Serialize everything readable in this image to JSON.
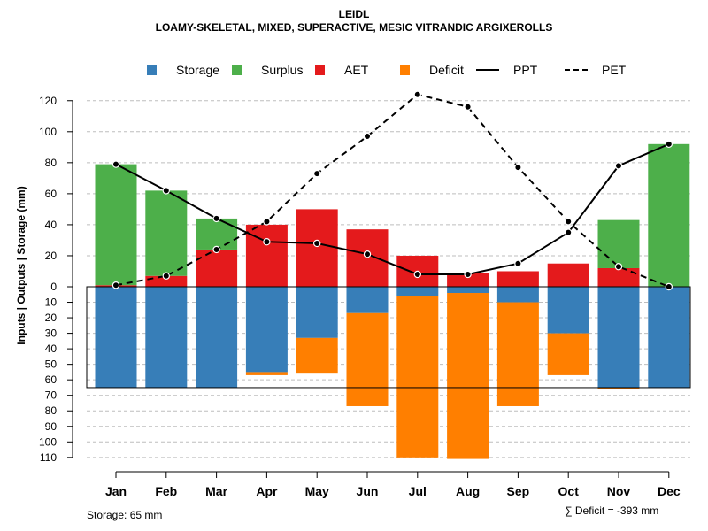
{
  "title": "LEIDL",
  "subtitle": "LOAMY-SKELETAL, MIXED, SUPERACTIVE, MESIC VITRANDIC ARGIXEROLLS",
  "legend": [
    {
      "label": "Storage",
      "kind": "square",
      "color": "#377EB8"
    },
    {
      "label": "Surplus",
      "kind": "square",
      "color": "#4DAF4A"
    },
    {
      "label": "AET",
      "kind": "square",
      "color": "#E41A1C"
    },
    {
      "label": "Deficit",
      "kind": "square",
      "color": "#FF7F00"
    },
    {
      "label": "PPT",
      "kind": "solid-line",
      "color": "#000000"
    },
    {
      "label": "PET",
      "kind": "dashed-line",
      "color": "#000000"
    }
  ],
  "storage_note": "Storage: 65 mm",
  "deficit_note": "∑ Deficit = -393 mm",
  "chart_data": {
    "type": "bar",
    "ylabel": "Inputs | Outputs | Storage    (mm)",
    "categories": [
      "Jan",
      "Feb",
      "Mar",
      "Apr",
      "May",
      "Jun",
      "Jul",
      "Aug",
      "Sep",
      "Oct",
      "Nov",
      "Dec"
    ],
    "ylim_top": [
      0,
      130
    ],
    "ylim_bottom": [
      0,
      110
    ],
    "top_ticks": [
      "0",
      "20",
      "40",
      "60",
      "80",
      "100",
      "120"
    ],
    "bottom_ticks": [
      "10",
      "20",
      "30",
      "40",
      "50",
      "60",
      "70",
      "80",
      "90",
      "100",
      "110"
    ],
    "storage_capacity": 65,
    "series": [
      {
        "name": "AET",
        "values": [
          1,
          7,
          24,
          40,
          50,
          37,
          20,
          9,
          10,
          15,
          12,
          0
        ]
      },
      {
        "name": "Surplus",
        "values": [
          78,
          55,
          20,
          0,
          0,
          0,
          0,
          0,
          0,
          0,
          31,
          92
        ]
      },
      {
        "name": "Storage",
        "values": [
          65,
          65,
          65,
          55,
          33,
          17,
          6,
          4,
          10,
          30,
          65,
          65
        ]
      },
      {
        "name": "Deficit",
        "values": [
          0,
          0,
          0,
          2,
          23,
          60,
          104,
          107,
          67,
          27,
          1,
          0
        ]
      },
      {
        "name": "PPT",
        "values": [
          79,
          62,
          44,
          29,
          28,
          21,
          8,
          8,
          15,
          35,
          78,
          92
        ]
      },
      {
        "name": "PET",
        "values": [
          1,
          7,
          24,
          42,
          73,
          97,
          124,
          116,
          77,
          42,
          13,
          0
        ]
      }
    ]
  }
}
